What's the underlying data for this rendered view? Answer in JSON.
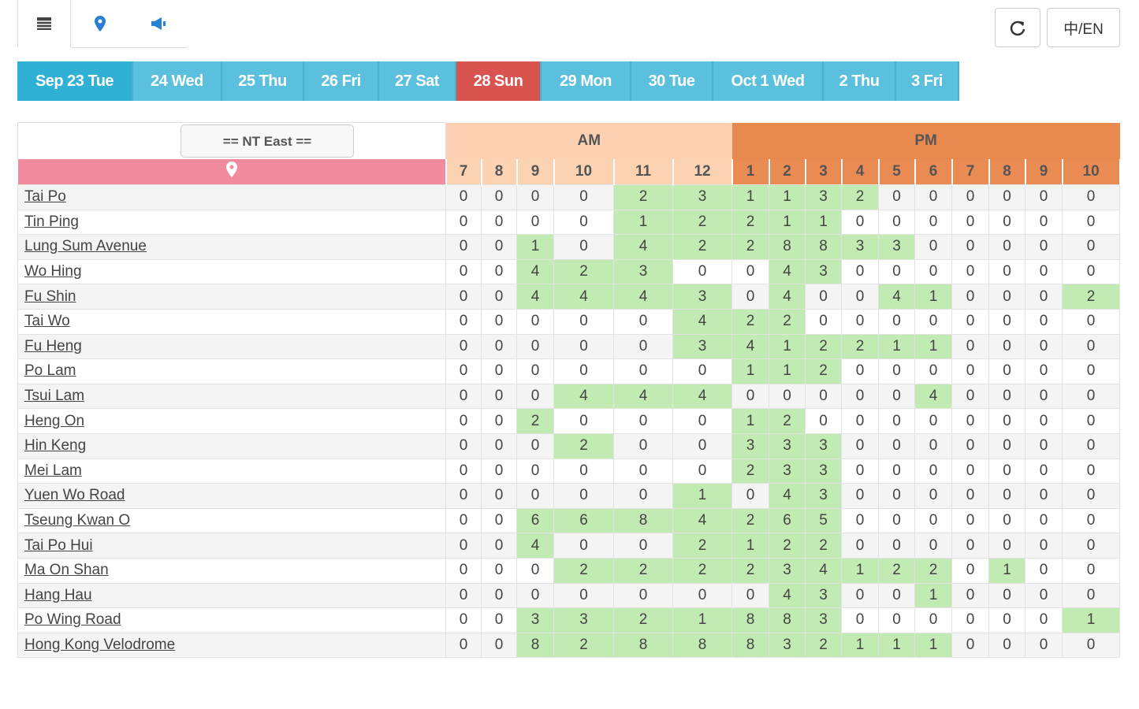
{
  "toolbar": {
    "language_toggle": "中/EN"
  },
  "dates": [
    "Sep 23 Tue",
    "24 Wed",
    "25 Thu",
    "26 Fri",
    "27 Sat",
    "28 Sun",
    "29 Mon",
    "30 Tue",
    "Oct 1 Wed",
    "2 Thu",
    "3 Fri"
  ],
  "table": {
    "region_select": "== NT East ==",
    "periods": [
      {
        "label": "AM",
        "hours": [
          7,
          8,
          9,
          10,
          11,
          12
        ]
      },
      {
        "label": "PM",
        "hours": [
          1,
          2,
          3,
          4,
          5,
          6,
          7,
          8,
          9,
          10
        ]
      }
    ],
    "rows": [
      {
        "name": "Tai Po",
        "counts": [
          0,
          0,
          0,
          0,
          2,
          3,
          1,
          1,
          3,
          2,
          0,
          0,
          0,
          0,
          0,
          0
        ]
      },
      {
        "name": "Tin Ping",
        "counts": [
          0,
          0,
          0,
          0,
          1,
          2,
          2,
          1,
          1,
          0,
          0,
          0,
          0,
          0,
          0,
          0
        ]
      },
      {
        "name": "Lung Sum Avenue",
        "counts": [
          0,
          0,
          1,
          0,
          4,
          2,
          2,
          8,
          8,
          3,
          3,
          0,
          0,
          0,
          0,
          0
        ]
      },
      {
        "name": "Wo Hing",
        "counts": [
          0,
          0,
          4,
          2,
          3,
          0,
          0,
          4,
          3,
          0,
          0,
          0,
          0,
          0,
          0,
          0
        ]
      },
      {
        "name": "Fu Shin",
        "counts": [
          0,
          0,
          4,
          4,
          4,
          3,
          0,
          4,
          0,
          0,
          4,
          1,
          0,
          0,
          0,
          2
        ]
      },
      {
        "name": "Tai Wo",
        "counts": [
          0,
          0,
          0,
          0,
          0,
          4,
          2,
          2,
          0,
          0,
          0,
          0,
          0,
          0,
          0,
          0
        ]
      },
      {
        "name": "Fu Heng",
        "counts": [
          0,
          0,
          0,
          0,
          0,
          3,
          4,
          1,
          2,
          2,
          1,
          1,
          0,
          0,
          0,
          0
        ]
      },
      {
        "name": "Po Lam",
        "counts": [
          0,
          0,
          0,
          0,
          0,
          0,
          1,
          1,
          2,
          0,
          0,
          0,
          0,
          0,
          0,
          0
        ]
      },
      {
        "name": "Tsui Lam",
        "counts": [
          0,
          0,
          0,
          4,
          4,
          4,
          0,
          0,
          0,
          0,
          0,
          4,
          0,
          0,
          0,
          0
        ]
      },
      {
        "name": "Heng On",
        "counts": [
          0,
          0,
          2,
          0,
          0,
          0,
          1,
          2,
          0,
          0,
          0,
          0,
          0,
          0,
          0,
          0
        ]
      },
      {
        "name": "Hin Keng",
        "counts": [
          0,
          0,
          0,
          2,
          0,
          0,
          3,
          3,
          3,
          0,
          0,
          0,
          0,
          0,
          0,
          0
        ]
      },
      {
        "name": "Mei Lam",
        "counts": [
          0,
          0,
          0,
          0,
          0,
          0,
          2,
          3,
          3,
          0,
          0,
          0,
          0,
          0,
          0,
          0
        ]
      },
      {
        "name": "Yuen Wo Road",
        "counts": [
          0,
          0,
          0,
          0,
          0,
          1,
          0,
          4,
          3,
          0,
          0,
          0,
          0,
          0,
          0,
          0
        ]
      },
      {
        "name": "Tseung Kwan O",
        "counts": [
          0,
          0,
          6,
          6,
          8,
          4,
          2,
          6,
          5,
          0,
          0,
          0,
          0,
          0,
          0,
          0
        ]
      },
      {
        "name": "Tai Po Hui",
        "counts": [
          0,
          0,
          4,
          0,
          0,
          2,
          1,
          2,
          2,
          0,
          0,
          0,
          0,
          0,
          0,
          0
        ]
      },
      {
        "name": "Ma On Shan",
        "counts": [
          0,
          0,
          0,
          2,
          2,
          2,
          2,
          3,
          4,
          1,
          2,
          2,
          0,
          1,
          0,
          0
        ]
      },
      {
        "name": "Hang Hau",
        "counts": [
          0,
          0,
          0,
          0,
          0,
          0,
          0,
          4,
          3,
          0,
          0,
          1,
          0,
          0,
          0,
          0
        ]
      },
      {
        "name": "Po Wing Road",
        "counts": [
          0,
          0,
          3,
          3,
          2,
          1,
          8,
          8,
          3,
          0,
          0,
          0,
          0,
          0,
          0,
          1
        ]
      },
      {
        "name": "Hong Kong Velodrome",
        "counts": [
          0,
          0,
          8,
          2,
          8,
          8,
          8,
          3,
          2,
          1,
          1,
          1,
          0,
          0,
          0,
          0
        ]
      }
    ]
  }
}
